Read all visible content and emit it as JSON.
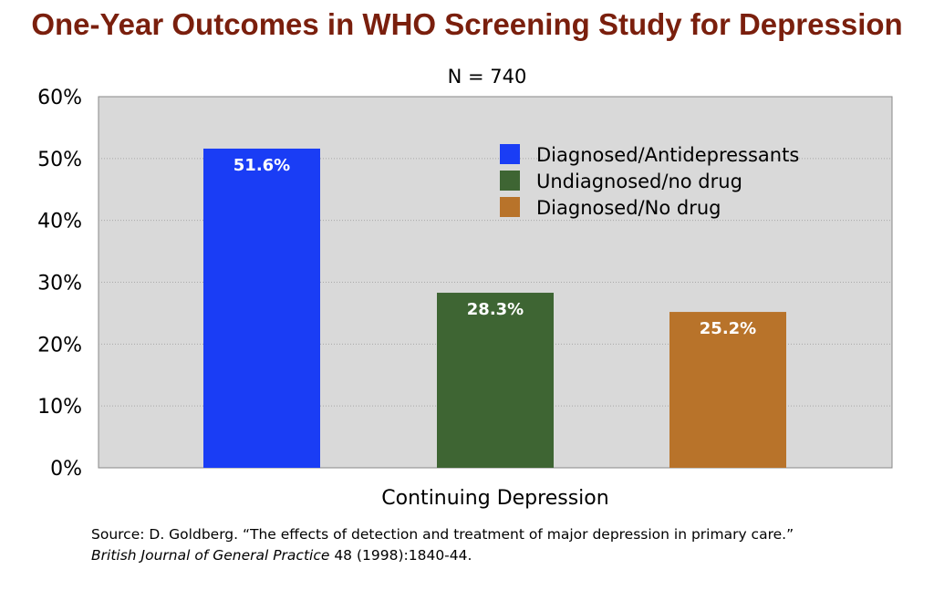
{
  "title": "One-Year Outcomes in WHO Screening Study for Depression",
  "chart_data": {
    "type": "bar",
    "subtitle": "N =  740",
    "xlabel": "Continuing Depression",
    "ylabel": "",
    "ylim": [
      0,
      60
    ],
    "yticks": [
      "0%",
      "10%",
      "20%",
      "30%",
      "40%",
      "50%",
      "60%"
    ],
    "yticks_values": [
      0,
      10,
      20,
      30,
      40,
      50,
      60
    ],
    "grid": true,
    "legend_position": "top-right",
    "plot_background": "#d9d9d9",
    "series": [
      {
        "name": "Diagnosed/Antidepressants",
        "value": 51.6,
        "label": "51.6%",
        "color": "#1a3df5"
      },
      {
        "name": "Undiagnosed/no drug",
        "value": 28.3,
        "label": "28.3%",
        "color": "#3e6533"
      },
      {
        "name": "Diagnosed/No drug",
        "value": 25.2,
        "label": "25.2%",
        "color": "#b8732a"
      }
    ]
  },
  "source": {
    "prefix": "Source: D. Goldberg. “The effects of detection and treatment of major depression in primary care.”",
    "journal": "British Journal of General Practice",
    "citation": " 48 (1998):1840-44."
  }
}
